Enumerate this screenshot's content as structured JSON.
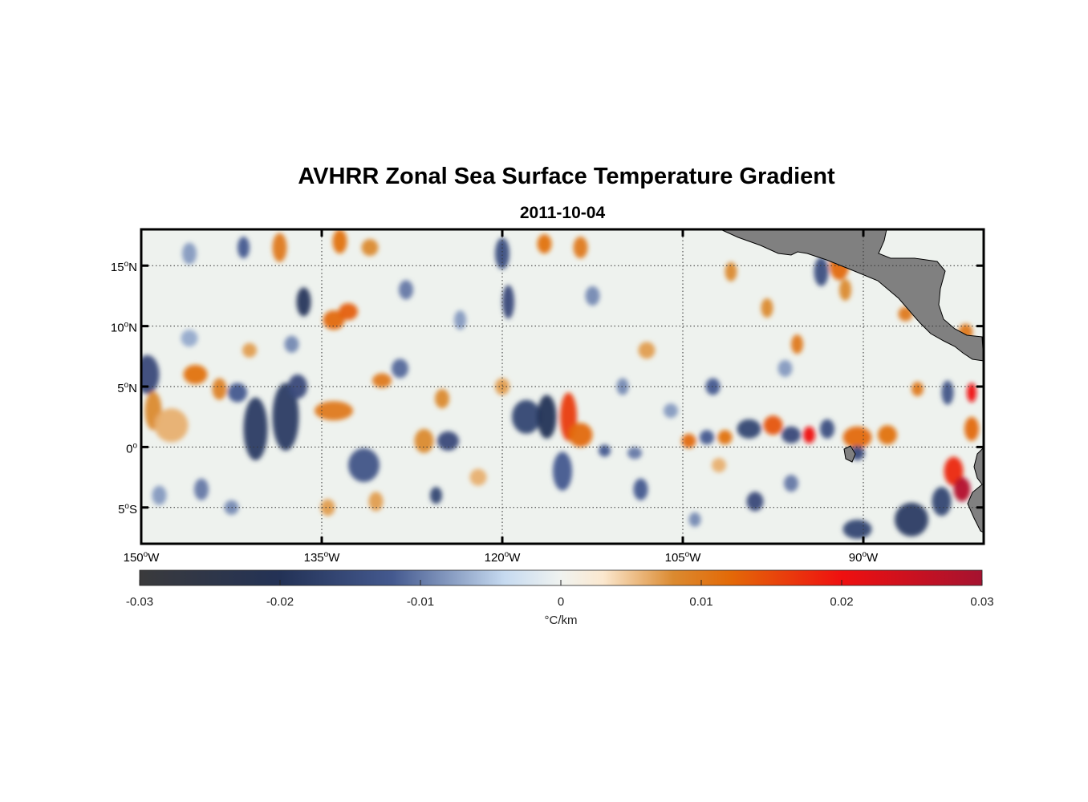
{
  "title": "AVHRR Zonal Sea Surface Temperature Gradient",
  "subtitle": "2011-10-04",
  "map": {
    "lon_range": [
      -150,
      -80
    ],
    "lat_range": [
      -8,
      18
    ],
    "lon_ticks": [
      {
        "value": -150,
        "deg": "150",
        "hemi": "W"
      },
      {
        "value": -135,
        "deg": "135",
        "hemi": "W"
      },
      {
        "value": -120,
        "deg": "120",
        "hemi": "W"
      },
      {
        "value": -105,
        "deg": "105",
        "hemi": "W"
      },
      {
        "value": -90,
        "deg": "90",
        "hemi": "W"
      }
    ],
    "lat_ticks": [
      {
        "value": 15,
        "deg": "15",
        "hemi": "N"
      },
      {
        "value": 10,
        "deg": "10",
        "hemi": "N"
      },
      {
        "value": 5,
        "deg": "5",
        "hemi": "N"
      },
      {
        "value": 0,
        "deg": "0",
        "hemi": ""
      },
      {
        "value": -5,
        "deg": "5",
        "hemi": "S"
      }
    ],
    "degree_symbol": "o",
    "grid": true,
    "land_color": "#808080",
    "features": [
      {
        "lon": -149.5,
        "lat": 6.0,
        "v": -0.015,
        "rx": 1.0,
        "ry": 1.6
      },
      {
        "lon": -149.0,
        "lat": 3.0,
        "v": 0.008,
        "rx": 0.7,
        "ry": 1.6
      },
      {
        "lon": -147.5,
        "lat": 1.8,
        "v": 0.006,
        "rx": 1.4,
        "ry": 1.4
      },
      {
        "lon": -145.5,
        "lat": 6.0,
        "v": 0.011,
        "rx": 1.0,
        "ry": 0.8
      },
      {
        "lon": -143.5,
        "lat": 4.8,
        "v": 0.009,
        "rx": 0.6,
        "ry": 0.9
      },
      {
        "lon": -142.0,
        "lat": 4.5,
        "v": -0.012,
        "rx": 0.8,
        "ry": 0.8
      },
      {
        "lon": -140.5,
        "lat": 1.5,
        "v": -0.018,
        "rx": 1.0,
        "ry": 2.6
      },
      {
        "lon": -138.0,
        "lat": 2.5,
        "v": -0.018,
        "rx": 1.1,
        "ry": 2.8
      },
      {
        "lon": -137.0,
        "lat": 5.0,
        "v": -0.015,
        "rx": 0.8,
        "ry": 1.0
      },
      {
        "lon": -134.0,
        "lat": 3.0,
        "v": 0.01,
        "rx": 1.6,
        "ry": 0.8
      },
      {
        "lon": -136.5,
        "lat": 12.0,
        "v": -0.019,
        "rx": 0.6,
        "ry": 1.2
      },
      {
        "lon": -134.0,
        "lat": 10.5,
        "v": 0.012,
        "rx": 0.9,
        "ry": 0.8
      },
      {
        "lon": -132.8,
        "lat": 11.2,
        "v": 0.013,
        "rx": 0.8,
        "ry": 0.7
      },
      {
        "lon": -133.5,
        "lat": 17.0,
        "v": 0.011,
        "rx": 0.6,
        "ry": 1.0
      },
      {
        "lon": -138.5,
        "lat": 16.5,
        "v": 0.01,
        "rx": 0.6,
        "ry": 1.2
      },
      {
        "lon": -141.5,
        "lat": 16.5,
        "v": -0.012,
        "rx": 0.5,
        "ry": 0.9
      },
      {
        "lon": -146.0,
        "lat": 16.0,
        "v": -0.008,
        "rx": 0.6,
        "ry": 0.9
      },
      {
        "lon": -131.0,
        "lat": 16.5,
        "v": 0.008,
        "rx": 0.7,
        "ry": 0.7
      },
      {
        "lon": -128.5,
        "lat": 6.5,
        "v": -0.011,
        "rx": 0.7,
        "ry": 0.8
      },
      {
        "lon": -130.0,
        "lat": 5.5,
        "v": 0.01,
        "rx": 0.8,
        "ry": 0.6
      },
      {
        "lon": -131.5,
        "lat": -1.5,
        "v": -0.013,
        "rx": 1.3,
        "ry": 1.4
      },
      {
        "lon": -130.5,
        "lat": -4.5,
        "v": 0.007,
        "rx": 0.6,
        "ry": 0.8
      },
      {
        "lon": -126.5,
        "lat": 0.5,
        "v": 0.008,
        "rx": 0.8,
        "ry": 1.0
      },
      {
        "lon": -124.5,
        "lat": 0.5,
        "v": -0.015,
        "rx": 0.9,
        "ry": 0.8
      },
      {
        "lon": -125.5,
        "lat": -4.0,
        "v": -0.016,
        "rx": 0.5,
        "ry": 0.7
      },
      {
        "lon": -125.0,
        "lat": 4.0,
        "v": 0.008,
        "rx": 0.6,
        "ry": 0.8
      },
      {
        "lon": -120.0,
        "lat": 16.0,
        "v": -0.014,
        "rx": 0.6,
        "ry": 1.3
      },
      {
        "lon": -119.5,
        "lat": 12.0,
        "v": -0.015,
        "rx": 0.5,
        "ry": 1.4
      },
      {
        "lon": -116.5,
        "lat": 16.8,
        "v": 0.011,
        "rx": 0.6,
        "ry": 0.8
      },
      {
        "lon": -113.5,
        "lat": 16.5,
        "v": 0.01,
        "rx": 0.6,
        "ry": 0.9
      },
      {
        "lon": -118.0,
        "lat": 2.5,
        "v": -0.016,
        "rx": 1.2,
        "ry": 1.4
      },
      {
        "lon": -116.3,
        "lat": 2.5,
        "v": -0.02,
        "rx": 0.8,
        "ry": 1.8
      },
      {
        "lon": -114.5,
        "lat": 2.5,
        "v": 0.016,
        "rx": 0.7,
        "ry": 2.0
      },
      {
        "lon": -113.5,
        "lat": 1.0,
        "v": 0.012,
        "rx": 1.0,
        "ry": 1.0
      },
      {
        "lon": -111.5,
        "lat": -0.3,
        "v": -0.012,
        "rx": 0.5,
        "ry": 0.5
      },
      {
        "lon": -109.0,
        "lat": -0.5,
        "v": -0.01,
        "rx": 0.6,
        "ry": 0.5
      },
      {
        "lon": -115.0,
        "lat": -2.0,
        "v": -0.012,
        "rx": 0.8,
        "ry": 1.6
      },
      {
        "lon": -108.5,
        "lat": -3.5,
        "v": -0.012,
        "rx": 0.6,
        "ry": 0.9
      },
      {
        "lon": -104.5,
        "lat": 0.5,
        "v": 0.012,
        "rx": 0.6,
        "ry": 0.6
      },
      {
        "lon": -103.0,
        "lat": 0.8,
        "v": -0.012,
        "rx": 0.6,
        "ry": 0.6
      },
      {
        "lon": -101.5,
        "lat": 0.8,
        "v": 0.011,
        "rx": 0.6,
        "ry": 0.6
      },
      {
        "lon": -99.5,
        "lat": 1.5,
        "v": -0.016,
        "rx": 1.0,
        "ry": 0.8
      },
      {
        "lon": -97.5,
        "lat": 1.8,
        "v": 0.014,
        "rx": 0.8,
        "ry": 0.8
      },
      {
        "lon": -96.0,
        "lat": 1.0,
        "v": -0.015,
        "rx": 0.8,
        "ry": 0.7
      },
      {
        "lon": -94.5,
        "lat": 1.0,
        "v": 0.02,
        "rx": 0.5,
        "ry": 0.7
      },
      {
        "lon": -93.0,
        "lat": 1.5,
        "v": -0.014,
        "rx": 0.6,
        "ry": 0.8
      },
      {
        "lon": -90.5,
        "lat": 0.8,
        "v": 0.012,
        "rx": 1.2,
        "ry": 0.9
      },
      {
        "lon": -88.0,
        "lat": 1.0,
        "v": 0.011,
        "rx": 0.8,
        "ry": 0.8
      },
      {
        "lon": -90.5,
        "lat": -0.5,
        "v": -0.015,
        "rx": 0.6,
        "ry": 0.6
      },
      {
        "lon": -93.5,
        "lat": 14.5,
        "v": -0.014,
        "rx": 0.6,
        "ry": 1.2
      },
      {
        "lon": -92.0,
        "lat": 15.0,
        "v": 0.012,
        "rx": 0.8,
        "ry": 1.2
      },
      {
        "lon": -91.5,
        "lat": 13.0,
        "v": 0.008,
        "rx": 0.5,
        "ry": 0.9
      },
      {
        "lon": -95.5,
        "lat": 8.5,
        "v": 0.01,
        "rx": 0.5,
        "ry": 0.8
      },
      {
        "lon": -98.0,
        "lat": 11.5,
        "v": 0.008,
        "rx": 0.5,
        "ry": 0.8
      },
      {
        "lon": -101.0,
        "lat": 14.5,
        "v": 0.008,
        "rx": 0.5,
        "ry": 0.8
      },
      {
        "lon": -102.5,
        "lat": 5.0,
        "v": -0.012,
        "rx": 0.6,
        "ry": 0.7
      },
      {
        "lon": -99.0,
        "lat": -4.5,
        "v": -0.015,
        "rx": 0.7,
        "ry": 0.8
      },
      {
        "lon": -96.0,
        "lat": -3.0,
        "v": -0.01,
        "rx": 0.6,
        "ry": 0.7
      },
      {
        "lon": -90.5,
        "lat": -6.8,
        "v": -0.016,
        "rx": 1.2,
        "ry": 0.8
      },
      {
        "lon": -86.0,
        "lat": -6.0,
        "v": -0.018,
        "rx": 1.4,
        "ry": 1.4
      },
      {
        "lon": -83.5,
        "lat": -4.5,
        "v": -0.016,
        "rx": 0.8,
        "ry": 1.2
      },
      {
        "lon": -82.5,
        "lat": -2.0,
        "v": 0.018,
        "rx": 0.8,
        "ry": 1.2
      },
      {
        "lon": -81.8,
        "lat": -3.5,
        "v": 0.028,
        "rx": 0.7,
        "ry": 1.0
      },
      {
        "lon": -81.0,
        "lat": 4.5,
        "v": 0.02,
        "rx": 0.4,
        "ry": 0.8
      },
      {
        "lon": -83.0,
        "lat": 4.5,
        "v": -0.013,
        "rx": 0.5,
        "ry": 1.0
      },
      {
        "lon": -85.5,
        "lat": 4.8,
        "v": 0.01,
        "rx": 0.5,
        "ry": 0.6
      },
      {
        "lon": -81.0,
        "lat": 1.5,
        "v": 0.012,
        "rx": 0.6,
        "ry": 1.0
      },
      {
        "lon": -86.5,
        "lat": 11.0,
        "v": 0.01,
        "rx": 0.6,
        "ry": 0.6
      },
      {
        "lon": -81.5,
        "lat": 9.5,
        "v": 0.01,
        "rx": 0.6,
        "ry": 0.7
      },
      {
        "lon": -128.0,
        "lat": 13.0,
        "v": -0.01,
        "rx": 0.6,
        "ry": 0.8
      },
      {
        "lon": -123.5,
        "lat": 10.5,
        "v": -0.008,
        "rx": 0.5,
        "ry": 0.8
      },
      {
        "lon": -112.5,
        "lat": 12.5,
        "v": -0.009,
        "rx": 0.6,
        "ry": 0.8
      },
      {
        "lon": -108.0,
        "lat": 8.0,
        "v": 0.007,
        "rx": 0.7,
        "ry": 0.7
      },
      {
        "lon": -110.0,
        "lat": 5.0,
        "v": -0.009,
        "rx": 0.5,
        "ry": 0.7
      },
      {
        "lon": -106.0,
        "lat": 3.0,
        "v": -0.008,
        "rx": 0.6,
        "ry": 0.6
      },
      {
        "lon": -145.0,
        "lat": -3.5,
        "v": -0.01,
        "rx": 0.6,
        "ry": 0.9
      },
      {
        "lon": -142.5,
        "lat": -5.0,
        "v": -0.009,
        "rx": 0.6,
        "ry": 0.6
      },
      {
        "lon": -148.5,
        "lat": -4.0,
        "v": -0.008,
        "rx": 0.6,
        "ry": 0.8
      },
      {
        "lon": -134.5,
        "lat": -5.0,
        "v": 0.007,
        "rx": 0.6,
        "ry": 0.7
      },
      {
        "lon": -146.0,
        "lat": 9.0,
        "v": -0.007,
        "rx": 0.7,
        "ry": 0.7
      },
      {
        "lon": -141.0,
        "lat": 8.0,
        "v": 0.007,
        "rx": 0.6,
        "ry": 0.6
      },
      {
        "lon": -137.5,
        "lat": 8.5,
        "v": -0.009,
        "rx": 0.6,
        "ry": 0.7
      },
      {
        "lon": -120.0,
        "lat": 5.0,
        "v": 0.007,
        "rx": 0.6,
        "ry": 0.7
      },
      {
        "lon": -122.0,
        "lat": -2.5,
        "v": 0.006,
        "rx": 0.7,
        "ry": 0.7
      },
      {
        "lon": -102.0,
        "lat": -1.5,
        "v": 0.006,
        "rx": 0.6,
        "ry": 0.6
      },
      {
        "lon": -104.0,
        "lat": -6.0,
        "v": -0.009,
        "rx": 0.5,
        "ry": 0.6
      },
      {
        "lon": -96.5,
        "lat": 6.5,
        "v": -0.008,
        "rx": 0.6,
        "ry": 0.7
      }
    ]
  },
  "colorbar": {
    "min": -0.03,
    "max": 0.03,
    "ticks": [
      {
        "value": -0.03,
        "label": "-0.03"
      },
      {
        "value": -0.02,
        "label": "-0.02"
      },
      {
        "value": -0.01,
        "label": "-0.01"
      },
      {
        "value": 0,
        "label": "0"
      },
      {
        "value": 0.01,
        "label": "0.01"
      },
      {
        "value": 0.02,
        "label": "0.02"
      },
      {
        "value": 0.03,
        "label": "0.03"
      }
    ],
    "unit_label": "°C/km",
    "stops": [
      {
        "value": -0.03,
        "color": "#3a3a3c"
      },
      {
        "value": -0.02,
        "color": "#233256"
      },
      {
        "value": -0.012,
        "color": "#44598f"
      },
      {
        "value": -0.004,
        "color": "#c6daf0"
      },
      {
        "value": 0,
        "color": "#f0f3f0"
      },
      {
        "value": 0.003,
        "color": "#fbe8cf"
      },
      {
        "value": 0.008,
        "color": "#db8a30"
      },
      {
        "value": 0.012,
        "color": "#e36a08"
      },
      {
        "value": 0.02,
        "color": "#ef1010"
      },
      {
        "value": 0.03,
        "color": "#a51230"
      }
    ]
  }
}
